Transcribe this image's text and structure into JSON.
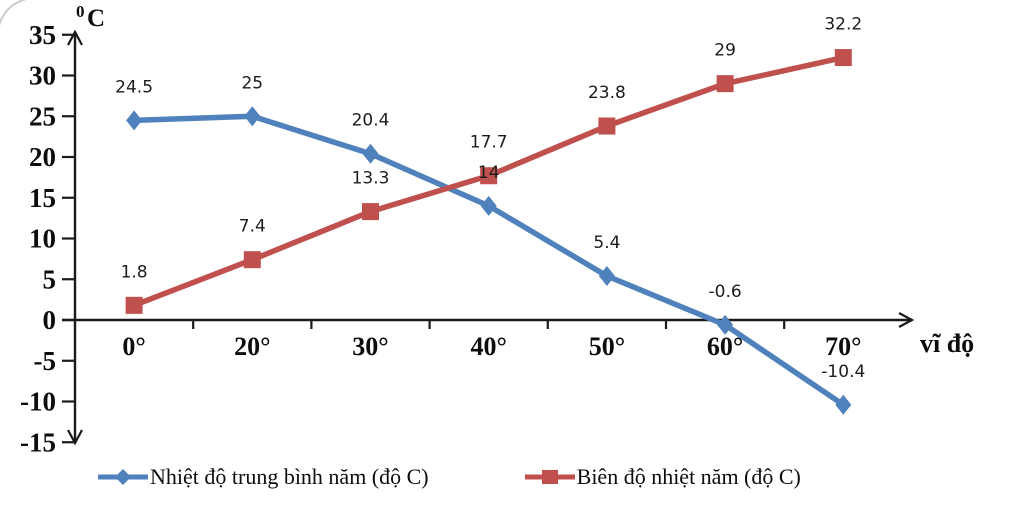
{
  "chart_data": {
    "type": "line",
    "title": "",
    "y_unit_sup": "0",
    "y_unit": "C",
    "xlabel": "vĩ độ",
    "categories": [
      "0°",
      "20°",
      "30°",
      "40°",
      "50°",
      "60°",
      "70°"
    ],
    "y_ticks": [
      35,
      30,
      25,
      20,
      15,
      10,
      5,
      0,
      -5,
      -10,
      -15
    ],
    "ylim": [
      -15,
      35
    ],
    "grid": false,
    "legend_position": "bottom",
    "axis_color": "#1a1a1a",
    "series": [
      {
        "name": "Nhiệt độ trung bình năm (độ C)",
        "color": "#4F81BD",
        "marker": "diamond",
        "values": [
          24.5,
          25,
          20.4,
          14,
          5.4,
          -0.6,
          -10.4
        ],
        "labels": [
          "24.5",
          "25",
          "20.4",
          "14",
          "5.4",
          "-0.6",
          "-10.4"
        ]
      },
      {
        "name": "Biên độ nhiệt năm (độ C)",
        "color": "#C0504D",
        "marker": "square",
        "values": [
          1.8,
          7.4,
          13.3,
          17.7,
          23.8,
          29,
          32.2
        ],
        "labels": [
          "1.8",
          "7.4",
          "13.3",
          "17.7",
          "23.8",
          "29",
          "32.2"
        ]
      }
    ]
  }
}
